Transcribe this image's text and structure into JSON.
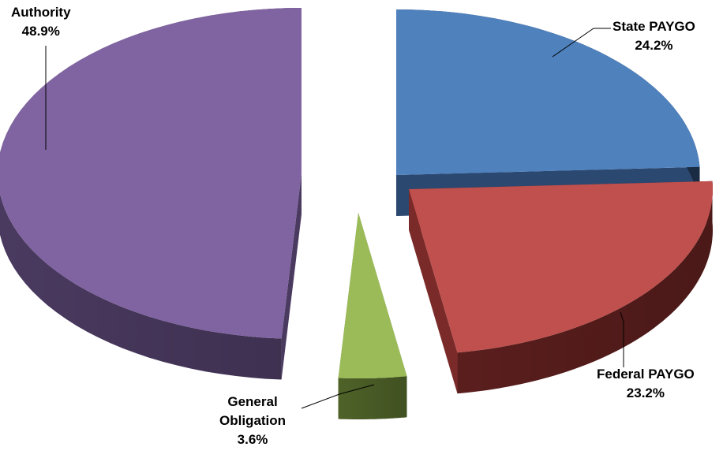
{
  "chart_data": {
    "type": "pie",
    "title": "",
    "slices": [
      {
        "name": "State PAYGO",
        "value": 24.2,
        "label": "24.2%",
        "color": "#4F81BD",
        "side": "#1F3552",
        "side_light": "#2B4870"
      },
      {
        "name": "Federal PAYGO",
        "value": 23.2,
        "label": "23.2%",
        "color": "#C0504D",
        "side": "#5A1E1D",
        "side_light": "#7A2A28"
      },
      {
        "name": "General Obligation",
        "value": 3.6,
        "label": "3.6%",
        "color": "#9BBB59",
        "side": "#4E6228",
        "side_light": "#6A8436"
      },
      {
        "name": "Authority",
        "value": 48.9,
        "label": "48.9%",
        "color": "#8064A2",
        "side": "#4A3A60",
        "side_light": "#6B5590"
      }
    ]
  },
  "labels": {
    "state_name": "State PAYGO",
    "state_pct": "24.2%",
    "federal_name": "Federal PAYGO",
    "federal_pct": "23.2%",
    "general_name_line1": "General",
    "general_name_line2": "Obligation",
    "general_pct": "3.6%",
    "authority_name": "Authority",
    "authority_pct": "48.9%"
  }
}
